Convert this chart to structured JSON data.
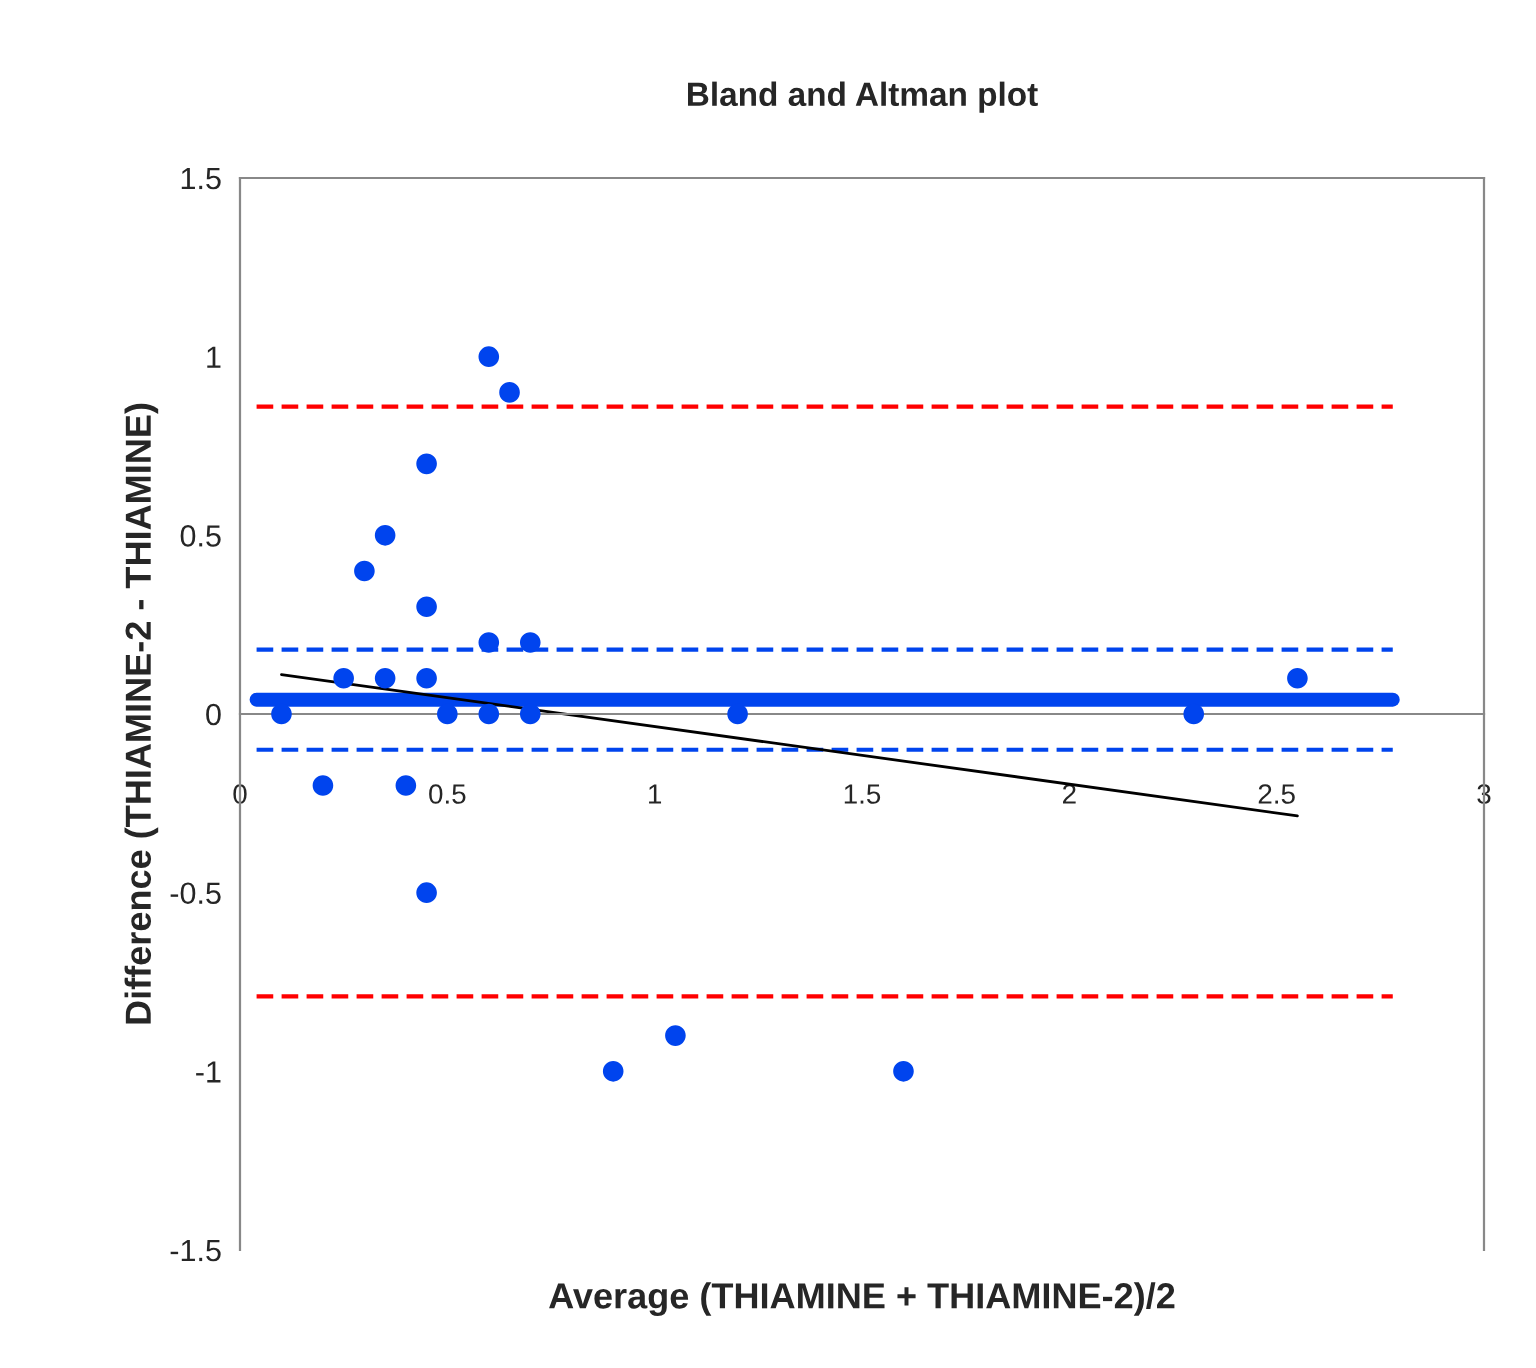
{
  "chart_data": {
    "type": "scatter",
    "title": "Bland and Altman plot",
    "xlabel": "Average (THIAMINE + THIAMINE-2)/2",
    "ylabel": "Difference (THIAMINE-2 - THIAMINE)",
    "xlim": [
      0,
      3
    ],
    "ylim": [
      -1.5,
      1.5
    ],
    "xticks": [
      0,
      0.5,
      1,
      1.5,
      2,
      2.5,
      3
    ],
    "yticks": [
      -1.5,
      -1,
      -0.5,
      0,
      0.5,
      1,
      1.5
    ],
    "grid": false,
    "marker": "circle",
    "series": [
      {
        "type": "line",
        "color": "#ff0000",
        "line_style": "dashed",
        "marker": "none",
        "x": [
          0.04,
          2.78
        ],
        "values": [
          0.86,
          0.86
        ]
      },
      {
        "type": "line",
        "color": "#ff0000",
        "line_style": "dashed",
        "marker": "none",
        "x": [
          0.04,
          2.78
        ],
        "values": [
          -0.79,
          -0.79
        ]
      },
      {
        "type": "line",
        "color": "#0044ee",
        "line_style": "dashed",
        "marker": "none",
        "x": [
          0.04,
          2.78
        ],
        "values": [
          0.18,
          0.18
        ]
      },
      {
        "type": "line",
        "color": "#0044ee",
        "line_style": "dashed",
        "marker": "none",
        "x": [
          0.04,
          2.78
        ],
        "values": [
          -0.1,
          -0.1
        ]
      },
      {
        "type": "line",
        "color": "#0044ee",
        "line_style": "solid",
        "marker": "none",
        "x": [
          0.04,
          2.78
        ],
        "values": [
          0.04,
          0.04
        ]
      },
      {
        "color": "#0044ee",
        "x": [
          0.1,
          0.2,
          0.25,
          0.3,
          0.35,
          0.35,
          0.4,
          0.45,
          0.45,
          0.45,
          0.45,
          0.5,
          0.6,
          0.65,
          0.6,
          0.6,
          0.7,
          0.7,
          0.9,
          1.05,
          1.2,
          1.6,
          2.3,
          2.55
        ],
        "values": [
          0,
          -0.2,
          0.1,
          0.4,
          0.5,
          0.1,
          -0.2,
          0.7,
          0.3,
          0.1,
          -0.5,
          0,
          1.0,
          0.9,
          0.2,
          0,
          0.2,
          0,
          -1,
          -0.9,
          0,
          -1,
          0,
          0.1
        ]
      },
      {
        "type": "line",
        "color": "#000000",
        "line_style": "solid",
        "marker": "none",
        "x": [
          0.1,
          2.55
        ],
        "values": [
          0.11,
          -0.285
        ]
      }
    ]
  }
}
